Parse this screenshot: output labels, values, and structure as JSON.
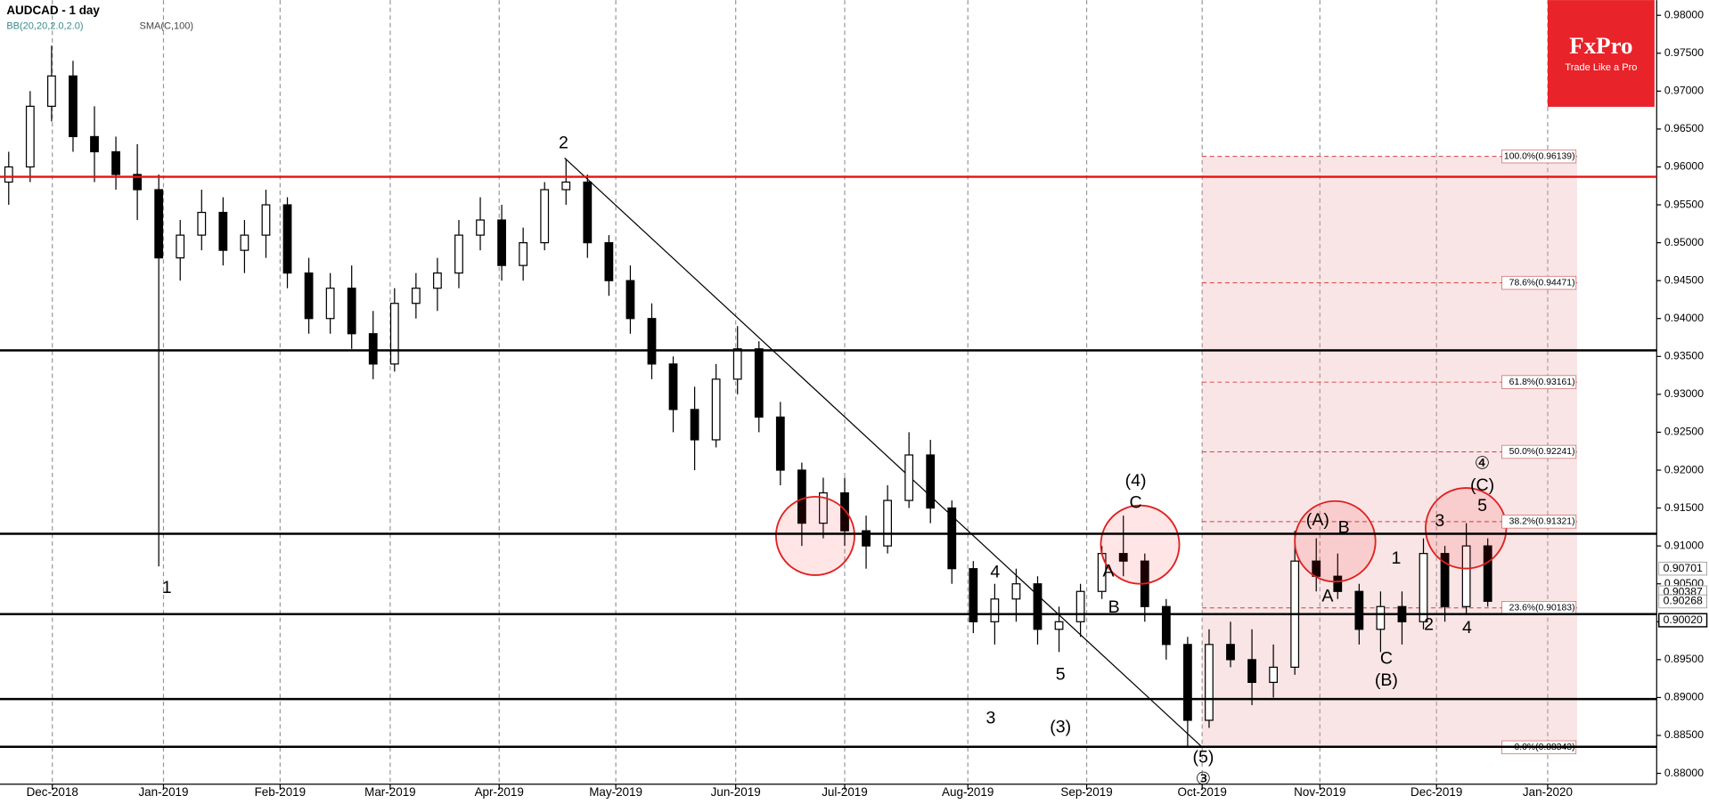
{
  "header": {
    "symbol": "AUDCAD - 1 day",
    "bb": "BB(20,20,2.0,2.0)",
    "sma": "SMA(C,100)"
  },
  "logo": {
    "brand": "FxPro",
    "tagline": "Trade Like a Pro"
  },
  "chart_data": {
    "type": "candlestick",
    "ylim": [
      0.88,
      0.98
    ],
    "yticks": [
      {
        "value": 0.98,
        "label": "0.98000"
      },
      {
        "value": 0.975,
        "label": "0.97500"
      },
      {
        "value": 0.97,
        "label": "0.97000"
      },
      {
        "value": 0.965,
        "label": "0.96500"
      },
      {
        "value": 0.96,
        "label": "0.96000"
      },
      {
        "value": 0.955,
        "label": "0.95500"
      },
      {
        "value": 0.95,
        "label": "0.95000"
      },
      {
        "value": 0.945,
        "label": "0.94500"
      },
      {
        "value": 0.94,
        "label": "0.94000"
      },
      {
        "value": 0.935,
        "label": "0.93500"
      },
      {
        "value": 0.93,
        "label": "0.93000"
      },
      {
        "value": 0.925,
        "label": "0.92500"
      },
      {
        "value": 0.92,
        "label": "0.92000"
      },
      {
        "value": 0.915,
        "label": "0.91500"
      },
      {
        "value": 0.91,
        "label": "0.91000"
      },
      {
        "value": 0.905,
        "label": "0.90500"
      },
      {
        "value": 0.9,
        "label": "0.90000"
      },
      {
        "value": 0.895,
        "label": "0.89500"
      },
      {
        "value": 0.89,
        "label": "0.89000"
      },
      {
        "value": 0.885,
        "label": "0.88500"
      },
      {
        "value": 0.88,
        "label": "0.88000"
      }
    ],
    "x_labels": [
      "Dec-2018",
      "Jan-2019",
      "Feb-2019",
      "Mar-2019",
      "Apr-2019",
      "May-2019",
      "Jun-2019",
      "Jul-2019",
      "Aug-2019",
      "Sep-2019",
      "Oct-2019",
      "Nov-2019",
      "Dec-2019",
      "Jan-2020"
    ],
    "up_color": "#ffffff",
    "down_color": "#000000",
    "ohlc": [
      [
        0.958,
        0.962,
        0.955,
        0.96
      ],
      [
        0.96,
        0.97,
        0.958,
        0.968
      ],
      [
        0.968,
        0.976,
        0.966,
        0.972
      ],
      [
        0.972,
        0.974,
        0.962,
        0.964
      ],
      [
        0.964,
        0.968,
        0.958,
        0.962
      ],
      [
        0.962,
        0.964,
        0.957,
        0.959
      ],
      [
        0.959,
        0.963,
        0.953,
        0.957
      ],
      [
        0.957,
        0.959,
        0.9073,
        0.948
      ],
      [
        0.948,
        0.953,
        0.945,
        0.951
      ],
      [
        0.951,
        0.957,
        0.949,
        0.954
      ],
      [
        0.954,
        0.956,
        0.947,
        0.949
      ],
      [
        0.949,
        0.953,
        0.946,
        0.951
      ],
      [
        0.951,
        0.957,
        0.948,
        0.955
      ],
      [
        0.955,
        0.956,
        0.944,
        0.946
      ],
      [
        0.946,
        0.948,
        0.938,
        0.94
      ],
      [
        0.94,
        0.946,
        0.938,
        0.944
      ],
      [
        0.944,
        0.947,
        0.936,
        0.938
      ],
      [
        0.938,
        0.941,
        0.932,
        0.934
      ],
      [
        0.934,
        0.944,
        0.933,
        0.942
      ],
      [
        0.942,
        0.946,
        0.94,
        0.944
      ],
      [
        0.944,
        0.948,
        0.941,
        0.946
      ],
      [
        0.946,
        0.953,
        0.944,
        0.951
      ],
      [
        0.951,
        0.956,
        0.949,
        0.953
      ],
      [
        0.953,
        0.955,
        0.945,
        0.947
      ],
      [
        0.947,
        0.952,
        0.945,
        0.95
      ],
      [
        0.95,
        0.958,
        0.949,
        0.957
      ],
      [
        0.957,
        0.961,
        0.955,
        0.958
      ],
      [
        0.958,
        0.959,
        0.948,
        0.95
      ],
      [
        0.95,
        0.951,
        0.943,
        0.945
      ],
      [
        0.945,
        0.947,
        0.938,
        0.94
      ],
      [
        0.94,
        0.942,
        0.932,
        0.934
      ],
      [
        0.934,
        0.935,
        0.925,
        0.928
      ],
      [
        0.928,
        0.931,
        0.92,
        0.924
      ],
      [
        0.924,
        0.934,
        0.923,
        0.932
      ],
      [
        0.932,
        0.939,
        0.93,
        0.936
      ],
      [
        0.936,
        0.937,
        0.925,
        0.927
      ],
      [
        0.927,
        0.929,
        0.918,
        0.92
      ],
      [
        0.92,
        0.921,
        0.91,
        0.913
      ],
      [
        0.913,
        0.919,
        0.911,
        0.917
      ],
      [
        0.917,
        0.919,
        0.91,
        0.912
      ],
      [
        0.912,
        0.914,
        0.907,
        0.91
      ],
      [
        0.91,
        0.918,
        0.909,
        0.916
      ],
      [
        0.916,
        0.925,
        0.915,
        0.922
      ],
      [
        0.922,
        0.924,
        0.913,
        0.915
      ],
      [
        0.915,
        0.916,
        0.905,
        0.907
      ],
      [
        0.907,
        0.908,
        0.8985,
        0.9
      ],
      [
        0.9,
        0.905,
        0.897,
        0.903
      ],
      [
        0.903,
        0.907,
        0.9,
        0.905
      ],
      [
        0.905,
        0.906,
        0.897,
        0.899
      ],
      [
        0.899,
        0.902,
        0.896,
        0.9
      ],
      [
        0.9,
        0.905,
        0.898,
        0.904
      ],
      [
        0.904,
        0.91,
        0.903,
        0.909
      ],
      [
        0.909,
        0.914,
        0.906,
        0.908
      ],
      [
        0.908,
        0.909,
        0.9,
        0.902
      ],
      [
        0.902,
        0.903,
        0.895,
        0.897
      ],
      [
        0.897,
        0.898,
        0.8835,
        0.887
      ],
      [
        0.887,
        0.899,
        0.886,
        0.897
      ],
      [
        0.897,
        0.9,
        0.894,
        0.895
      ],
      [
        0.895,
        0.899,
        0.889,
        0.892
      ],
      [
        0.892,
        0.897,
        0.89,
        0.894
      ],
      [
        0.894,
        0.912,
        0.893,
        0.908
      ],
      [
        0.908,
        0.911,
        0.904,
        0.906
      ],
      [
        0.906,
        0.909,
        0.903,
        0.904
      ],
      [
        0.904,
        0.905,
        0.897,
        0.899
      ],
      [
        0.899,
        0.904,
        0.896,
        0.902
      ],
      [
        0.902,
        0.904,
        0.897,
        0.9
      ],
      [
        0.9,
        0.911,
        0.899,
        0.909
      ],
      [
        0.909,
        0.91,
        0.9,
        0.902
      ],
      [
        0.902,
        0.913,
        0.901,
        0.91
      ],
      [
        0.91,
        0.911,
        0.902,
        0.9027
      ]
    ],
    "red_line": 0.9587,
    "levels": [
      0.9358,
      0.9116,
      0.901,
      0.8898,
      0.8835
    ],
    "fib": [
      {
        "value": 0.96139,
        "label": "100.0%(0.96139)"
      },
      {
        "value": 0.94471,
        "label": "78.6%(0.94471)"
      },
      {
        "value": 0.93161,
        "label": "61.8%(0.93161)"
      },
      {
        "value": 0.92241,
        "label": "50.0%(0.92241)"
      },
      {
        "value": 0.91321,
        "label": "38.2%(0.91321)"
      },
      {
        "value": 0.90183,
        "label": "23.6%(0.90183)"
      },
      {
        "value": 0.88343,
        "label": "0.0%(0.88343)"
      }
    ],
    "price_labels": [
      {
        "value": 0.90701,
        "label": "0.90701"
      },
      {
        "value": 0.90387,
        "label": "0.90387"
      },
      {
        "value": 0.90268,
        "label": "0.90268"
      },
      {
        "value": 0.9002,
        "label": "0.90020"
      }
    ]
  },
  "wave_labels": [
    "1",
    "2",
    "4",
    "3",
    "5",
    "(3)",
    "A",
    "B",
    "(4)",
    "C",
    "(5)",
    "③",
    "(A)",
    "B",
    "A",
    "1",
    "C",
    "(B)",
    "2",
    "3",
    "4",
    "5",
    "④",
    "(C)"
  ]
}
